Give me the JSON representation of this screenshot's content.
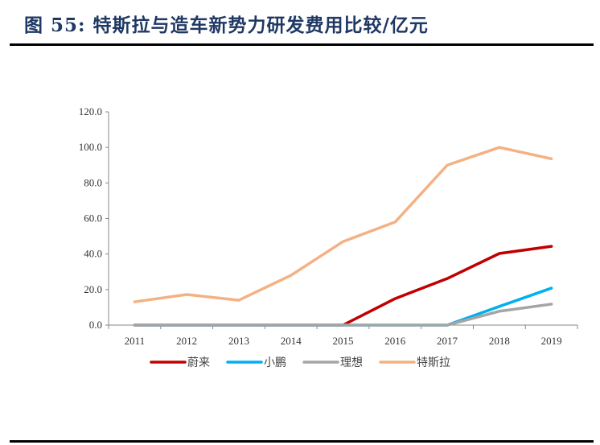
{
  "title": "图 55:  特斯拉与造车新势力研发费用比较/亿元",
  "chart_data": {
    "type": "line",
    "title": "",
    "xlabel": "",
    "ylabel": "",
    "categories": [
      "2011",
      "2012",
      "2013",
      "2014",
      "2015",
      "2016",
      "2017",
      "2018",
      "2019"
    ],
    "ylim": [
      0,
      120
    ],
    "yticks": [
      "0.0",
      "20.0",
      "40.0",
      "60.0",
      "80.0",
      "100.0",
      "120.0"
    ],
    "grid": false,
    "legend": "bottom",
    "series": [
      {
        "name": "蔚来",
        "color": "#c00000",
        "values": [
          0,
          0,
          0,
          0,
          0,
          14.9,
          26.2,
          40.3,
          44.3
        ]
      },
      {
        "name": "小鹏",
        "color": "#00b0f0",
        "values": [
          0,
          0,
          0,
          0,
          0,
          0,
          0,
          10.5,
          20.8
        ]
      },
      {
        "name": "理想",
        "color": "#a5a5a5",
        "values": [
          0,
          0,
          0,
          0,
          0,
          0,
          0,
          7.8,
          11.8
        ]
      },
      {
        "name": "特斯拉",
        "color": "#f4b183",
        "values": [
          13.1,
          17.2,
          14.0,
          28.0,
          47.0,
          58.0,
          90.0,
          100.0,
          93.6
        ]
      }
    ]
  }
}
